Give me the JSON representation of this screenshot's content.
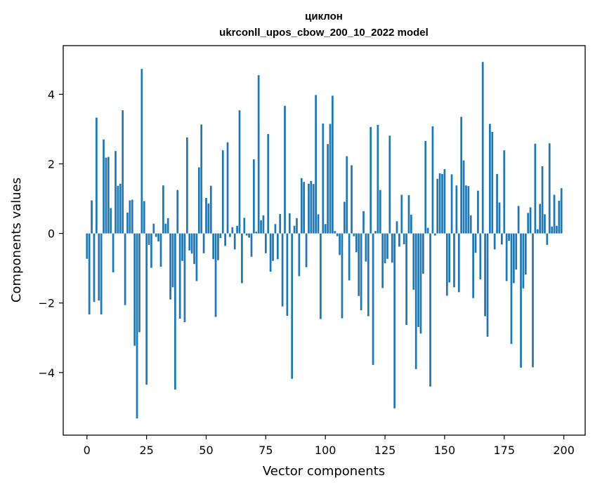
{
  "chart_data": {
    "type": "bar",
    "title": "циклон",
    "subtitle": "ukrconll_upos_cbow_200_10_2022 model",
    "xlabel": "Vector components",
    "ylabel": "Components values",
    "xlim": [
      -9.95,
      208.95
    ],
    "ylim": [
      -5.8,
      5.4
    ],
    "xticks": [
      0,
      25,
      50,
      75,
      100,
      125,
      150,
      175,
      200
    ],
    "yticks": [
      -4,
      -2,
      0,
      2,
      4
    ],
    "ytick_labels": [
      "−4",
      "−2",
      "0",
      "2",
      "4"
    ],
    "grid": false,
    "bar_color": "#1f77b4",
    "x": [
      0,
      1,
      2,
      3,
      4,
      5,
      6,
      7,
      8,
      9,
      10,
      11,
      12,
      13,
      14,
      15,
      16,
      17,
      18,
      19,
      20,
      21,
      22,
      23,
      24,
      25,
      26,
      27,
      28,
      29,
      30,
      31,
      32,
      33,
      34,
      35,
      36,
      37,
      38,
      39,
      40,
      41,
      42,
      43,
      44,
      45,
      46,
      47,
      48,
      49,
      50,
      51,
      52,
      53,
      54,
      55,
      56,
      57,
      58,
      59,
      60,
      61,
      62,
      63,
      64,
      65,
      66,
      67,
      68,
      69,
      70,
      71,
      72,
      73,
      74,
      75,
      76,
      77,
      78,
      79,
      80,
      81,
      82,
      83,
      84,
      85,
      86,
      87,
      88,
      89,
      90,
      91,
      92,
      93,
      94,
      95,
      96,
      97,
      98,
      99,
      100,
      101,
      102,
      103,
      104,
      105,
      106,
      107,
      108,
      109,
      110,
      111,
      112,
      113,
      114,
      115,
      116,
      117,
      118,
      119,
      120,
      121,
      122,
      123,
      124,
      125,
      126,
      127,
      128,
      129,
      130,
      131,
      132,
      133,
      134,
      135,
      136,
      137,
      138,
      139,
      140,
      141,
      142,
      143,
      144,
      145,
      146,
      147,
      148,
      149,
      150,
      151,
      152,
      153,
      154,
      155,
      156,
      157,
      158,
      159,
      160,
      161,
      162,
      163,
      164,
      165,
      166,
      167,
      168,
      169,
      170,
      171,
      172,
      173,
      174,
      175,
      176,
      177,
      178,
      179,
      180,
      181,
      182,
      183,
      184,
      185,
      186,
      187,
      188,
      189,
      190,
      191,
      192,
      193,
      194,
      195,
      196,
      197,
      198,
      199
    ],
    "values": [
      -0.73,
      -2.33,
      0.95,
      -1.97,
      3.33,
      -1.93,
      -2.33,
      2.7,
      2.18,
      2.2,
      0.73,
      -1.12,
      2.37,
      1.37,
      1.43,
      3.54,
      -2.06,
      0.6,
      0.95,
      0.97,
      -3.23,
      -5.32,
      -2.84,
      4.73,
      0.93,
      -4.35,
      -0.33,
      -0.99,
      0.28,
      -0.1,
      -0.23,
      -0.96,
      1.38,
      0.28,
      0.44,
      -1.9,
      -1.55,
      -4.49,
      1.25,
      -2.45,
      -0.79,
      -2.55,
      2.76,
      -0.49,
      -0.58,
      -0.88,
      -1.37,
      1.9,
      3.13,
      -0.57,
      1.02,
      0.86,
      1.37,
      -0.74,
      -2.4,
      -0.77,
      -0.13,
      2.39,
      -0.36,
      2.62,
      -0.1,
      0.18,
      -0.46,
      0.22,
      3.54,
      -1.43,
      0.45,
      -0.06,
      -0.12,
      -0.67,
      2.13,
      0.05,
      4.55,
      0.38,
      0.52,
      -0.57,
      2.86,
      -1.1,
      -0.79,
      0.27,
      -0.74,
      0.56,
      -2.1,
      3.67,
      -2.37,
      0.58,
      -4.18,
      0.22,
      0.44,
      -1.23,
      1.59,
      1.48,
      -0.97,
      1.43,
      1.51,
      1.42,
      3.98,
      0.55,
      -2.46,
      3.16,
      0.27,
      2.57,
      3.15,
      3.96,
      0.07,
      -0.08,
      -0.62,
      -2.44,
      0.91,
      2.22,
      -1.35,
      1.96,
      -0.08,
      -0.54,
      -1.8,
      -2.21,
      0.64,
      -0.81,
      -2.38,
      3.06,
      -3.78,
      0.07,
      3.12,
      1.25,
      -1.57,
      -0.86,
      -0.73,
      2.81,
      -0.84,
      -5.03,
      0.35,
      -0.38,
      1.11,
      -0.31,
      -2.63,
      1.1,
      0.54,
      -1.62,
      -3.9,
      -2.69,
      -2.88,
      -1.16,
      2.66,
      0.16,
      -4.4,
      3.08,
      -0.06,
      1.57,
      1.73,
      1.71,
      1.85,
      -1.79,
      -1.41,
      1.7,
      -1.55,
      1.38,
      -1.69,
      3.35,
      2.1,
      1.38,
      1.36,
      0.52,
      -1.86,
      -0.56,
      1.23,
      -1.32,
      4.93,
      -2.38,
      -2.97,
      3.15,
      2.92,
      -0.46,
      1.71,
      0.89,
      -0.32,
      2.39,
      -1.37,
      -0.21,
      -3.18,
      -1.43,
      -1.04,
      0.79,
      -3.86,
      -1.58,
      -1.18,
      0.59,
      0.75,
      -3.85,
      2.58,
      0.12,
      0.85,
      1.93,
      0.55,
      -0.33,
      2.59,
      0.2,
      1.11,
      0.22,
      0.94,
      1.3
    ]
  }
}
